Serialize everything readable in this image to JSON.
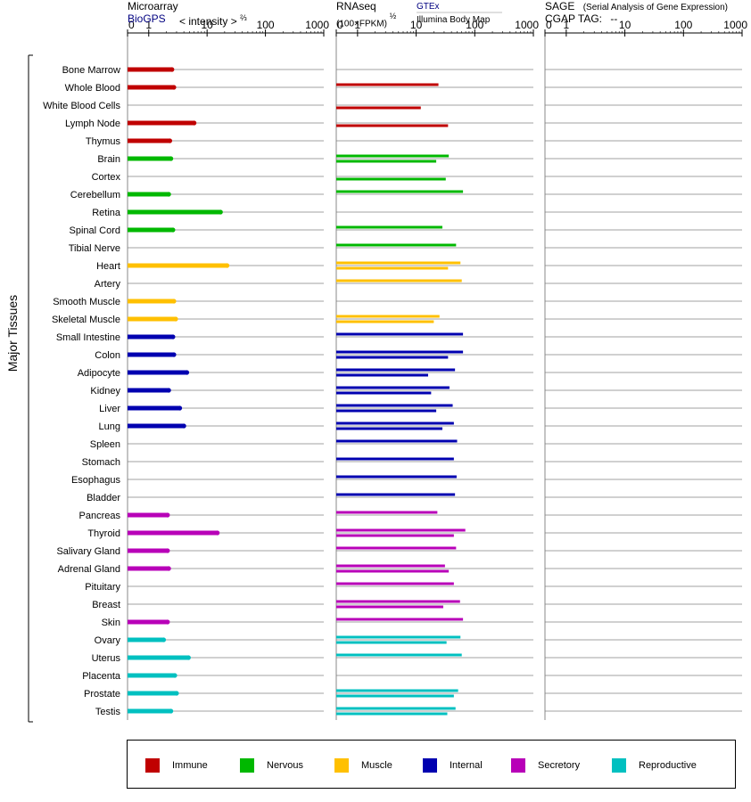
{
  "headers": {
    "microarray": {
      "title": "Microarray",
      "source": "BioGPS",
      "scale": "< intensity >",
      "exponent": "⅔"
    },
    "rnaseq": {
      "title": "RNAseq",
      "scale": "(100×FPKM)",
      "exponent": "½",
      "source1": "GTEx",
      "source2": "Illumina Body Map"
    },
    "sage": {
      "title": "SAGE",
      "subtitle": "(Serial Analysis of Gene Expression)",
      "tag_label": "CGAP TAG:",
      "tag_value": "--"
    }
  },
  "y_axis_label": "Major Tissues",
  "colors": {
    "Immune": "#c00000",
    "Nervous": "#00b800",
    "Muscle": "#ffc000",
    "Internal": "#0000b0",
    "Secretory": "#b800b8",
    "Reproductive": "#00c0c0"
  },
  "chart_data": {
    "type": "bar",
    "scale": "log",
    "ticks": [
      "0",
      "1",
      "10",
      "100",
      "1000"
    ],
    "panels": [
      "Microarray",
      "RNAseq",
      "SAGE"
    ],
    "categories": [
      "Bone Marrow",
      "Whole Blood",
      "White Blood Cells",
      "Lymph Node",
      "Thymus",
      "Brain",
      "Cortex",
      "Cerebellum",
      "Retina",
      "Spinal Cord",
      "Tibial Nerve",
      "Heart",
      "Artery",
      "Smooth Muscle",
      "Skeletal Muscle",
      "Small Intestine",
      "Colon",
      "Adipocyte",
      "Kidney",
      "Liver",
      "Lung",
      "Spleen",
      "Stomach",
      "Esophagus",
      "Bladder",
      "Pancreas",
      "Thyroid",
      "Salivary Gland",
      "Adrenal Gland",
      "Pituitary",
      "Breast",
      "Skin",
      "Ovary",
      "Uterus",
      "Placenta",
      "Prostate",
      "Testis"
    ],
    "groups": [
      "Immune",
      "Immune",
      "Immune",
      "Immune",
      "Immune",
      "Nervous",
      "Nervous",
      "Nervous",
      "Nervous",
      "Nervous",
      "Nervous",
      "Muscle",
      "Muscle",
      "Muscle",
      "Muscle",
      "Internal",
      "Internal",
      "Internal",
      "Internal",
      "Internal",
      "Internal",
      "Internal",
      "Internal",
      "Internal",
      "Internal",
      "Secretory",
      "Secretory",
      "Secretory",
      "Secretory",
      "Secretory",
      "Secretory",
      "Secretory",
      "Reproductive",
      "Reproductive",
      "Reproductive",
      "Reproductive",
      "Reproductive"
    ],
    "microarray": [
      2.5,
      2.7,
      null,
      6,
      2.3,
      2.4,
      null,
      2.2,
      17,
      2.6,
      null,
      22,
      null,
      2.7,
      2.9,
      2.6,
      2.7,
      4.5,
      2.2,
      3.4,
      4,
      null,
      null,
      null,
      null,
      2.1,
      15,
      2.1,
      2.2,
      null,
      null,
      2.1,
      1.8,
      4.8,
      2.8,
      3,
      2.4
    ],
    "rnaseq_gtex": [
      null,
      24,
      null,
      null,
      null,
      36,
      null,
      63,
      null,
      28,
      48,
      57,
      60,
      null,
      25,
      63,
      63,
      46,
      37,
      42,
      44,
      50,
      44,
      49,
      46,
      23,
      69,
      48,
      31,
      44,
      56,
      63,
      57,
      60,
      null,
      52,
      47
    ],
    "rnaseq_ibm": [
      null,
      null,
      12,
      35,
      null,
      22,
      32,
      null,
      null,
      null,
      null,
      35,
      null,
      null,
      20,
      null,
      35,
      16,
      18,
      22,
      28,
      null,
      null,
      null,
      null,
      null,
      44,
      null,
      36,
      null,
      29,
      null,
      33,
      null,
      null,
      44,
      34
    ]
  },
  "legend": [
    "Immune",
    "Nervous",
    "Muscle",
    "Internal",
    "Secretory",
    "Reproductive"
  ]
}
